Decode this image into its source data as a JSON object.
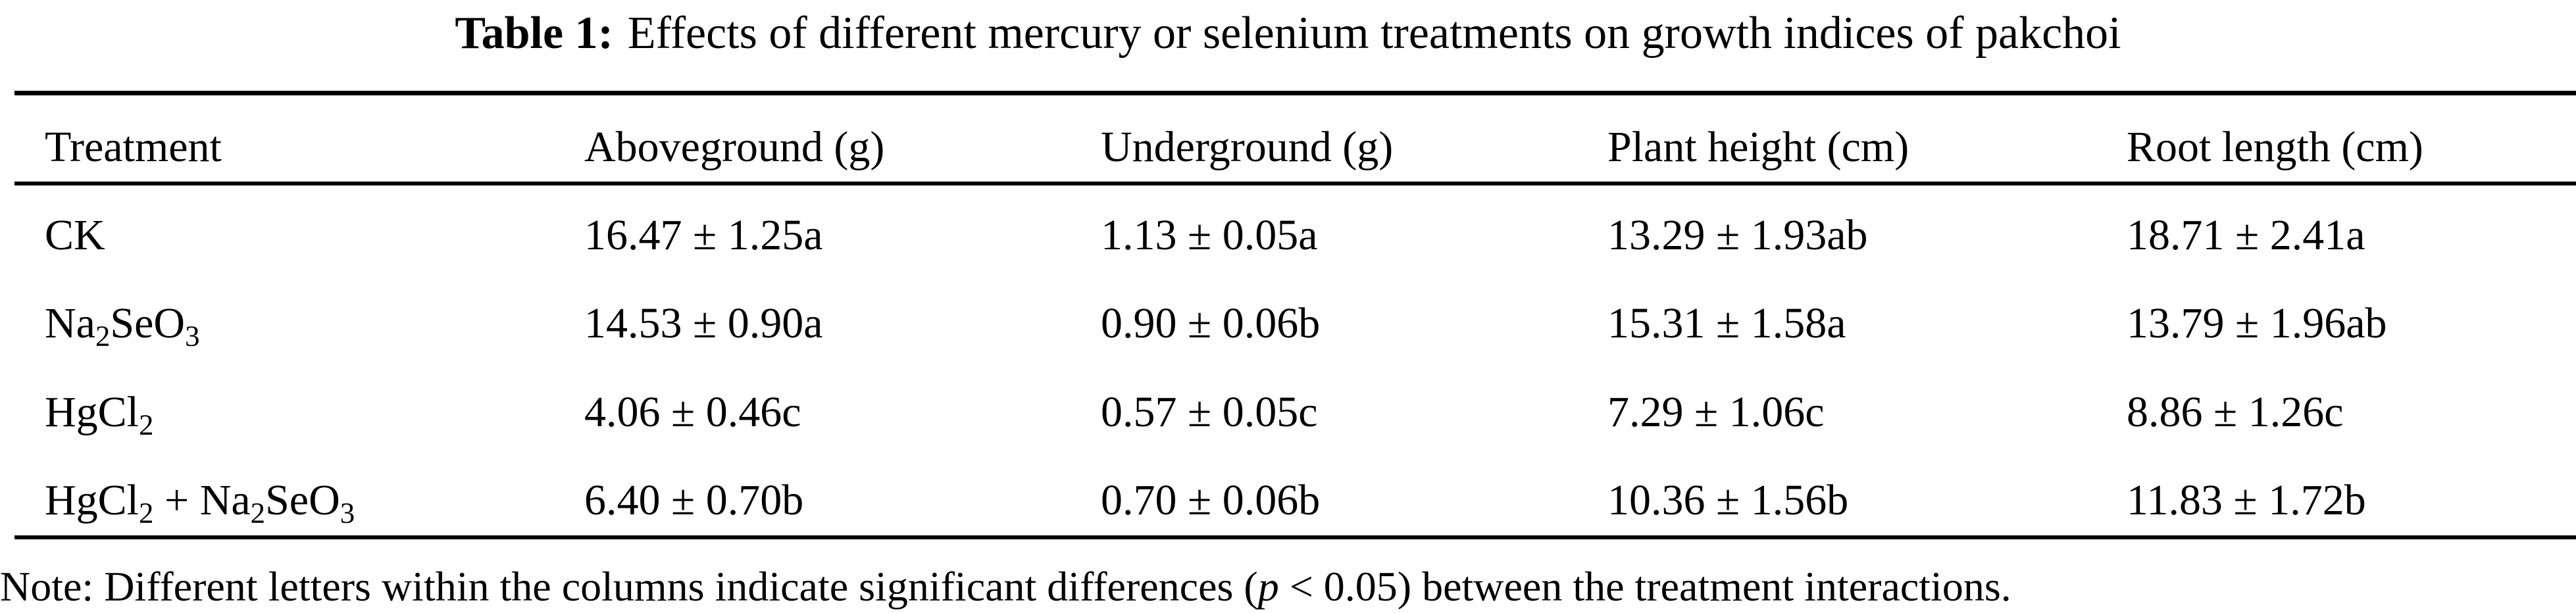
{
  "title": {
    "label": "Table 1:",
    "text": "Effects of different mercury or selenium treatments on growth indices of pakchoi"
  },
  "table": {
    "headers": [
      "Treatment",
      "Aboveground (g)",
      "Underground (g)",
      "Plant height (cm)",
      "Root length (cm)"
    ],
    "rows": [
      {
        "treatment": [
          {
            "t": "CK"
          }
        ],
        "values": [
          "16.47 ± 1.25a",
          "1.13 ± 0.05a",
          "13.29 ± 1.93ab",
          "18.71 ± 2.41a"
        ]
      },
      {
        "treatment": [
          {
            "t": "Na"
          },
          {
            "sub": "2"
          },
          {
            "t": "SeO"
          },
          {
            "sub": "3"
          }
        ],
        "values": [
          "14.53 ± 0.90a",
          "0.90 ± 0.06b",
          "15.31 ± 1.58a",
          "13.79 ± 1.96ab"
        ]
      },
      {
        "treatment": [
          {
            "t": "HgCl"
          },
          {
            "sub": "2"
          }
        ],
        "values": [
          "4.06 ± 0.46c",
          "0.57 ± 0.05c",
          "7.29 ± 1.06c",
          "8.86 ± 1.26c"
        ]
      },
      {
        "treatment": [
          {
            "t": "HgCl"
          },
          {
            "sub": "2"
          },
          {
            "t": " + Na"
          },
          {
            "sub": "2"
          },
          {
            "t": "SeO"
          },
          {
            "sub": "3"
          }
        ],
        "values": [
          "6.40 ± 0.70b",
          "0.70 ± 0.06b",
          "10.36 ± 1.56b",
          "11.83 ± 1.72b"
        ]
      }
    ]
  },
  "note": {
    "before": "Note: Different letters within the columns indicate significant differences (",
    "italic": "p",
    "after": " < 0.05) between the treatment interactions."
  }
}
